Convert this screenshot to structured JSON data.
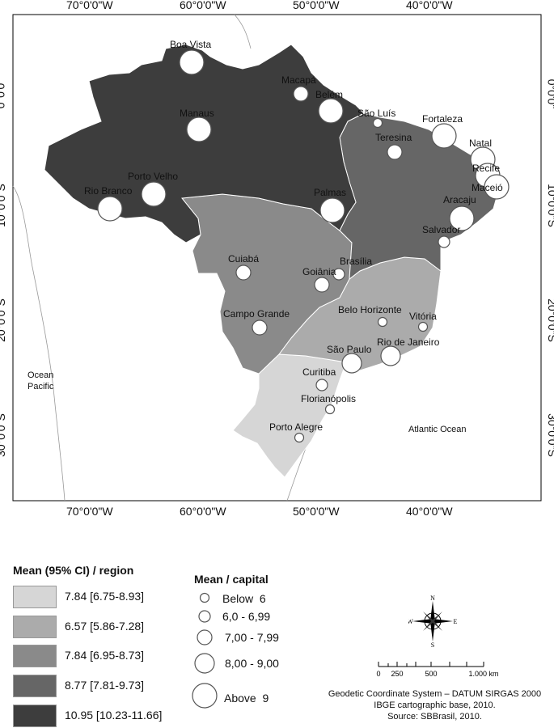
{
  "grid": {
    "top_labels": [
      "70°0'0\"W",
      "60°0'0\"W",
      "50°0'0\"W",
      "40°0'0\"W"
    ],
    "bottom_labels": [
      "70°0'0\"W",
      "60°0'0\"W",
      "50°0'0\"W",
      "40°0'0\"W"
    ],
    "left_labels": [
      "0°0'0\"",
      "10°0'0\"S",
      "20°0'0\"S",
      "30°0'0\"S"
    ],
    "right_labels": [
      "0°0'0\"",
      "10°0'0\"S",
      "20°0'0\"S",
      "30°0'0\"S"
    ]
  },
  "ocean_labels": {
    "pacific_line1": "Ocean",
    "pacific_line2": "Pacific",
    "atlantic": "Atlantic Ocean"
  },
  "colors": {
    "north": "#3d3d3d",
    "northeast": "#666666",
    "centerwest": "#8a8a8a",
    "southeast": "#ababab",
    "south": "#d6d6d6"
  },
  "cities": [
    {
      "name": "Boa Vista",
      "class": 4
    },
    {
      "name": "Macapá",
      "class": 2
    },
    {
      "name": "Belém",
      "class": 4
    },
    {
      "name": "Manaus",
      "class": 4
    },
    {
      "name": "São Luís",
      "class": 0
    },
    {
      "name": "Fortaleza",
      "class": 4
    },
    {
      "name": "Teresina",
      "class": 2
    },
    {
      "name": "Natal",
      "class": 4
    },
    {
      "name": "Recife",
      "class": 4
    },
    {
      "name": "Maceió",
      "class": 4
    },
    {
      "name": "Aracaju",
      "class": 4
    },
    {
      "name": "Porto Velho",
      "class": 4
    },
    {
      "name": "Rio Branco",
      "class": 4
    },
    {
      "name": "Palmas",
      "class": 4
    },
    {
      "name": "Salvador",
      "class": 1
    },
    {
      "name": "Brasília",
      "class": 1
    },
    {
      "name": "Cuiabá",
      "class": 2
    },
    {
      "name": "Goiânia",
      "class": 2
    },
    {
      "name": "Campo Grande",
      "class": 2
    },
    {
      "name": "Belo Horizonte",
      "class": 0
    },
    {
      "name": "Vitória",
      "class": 0
    },
    {
      "name": "Rio de Janeiro",
      "class": 3
    },
    {
      "name": "São Paulo",
      "class": 3
    },
    {
      "name": "Curitiba",
      "class": 1
    },
    {
      "name": "Florianópolis",
      "class": 0
    },
    {
      "name": "Porto Alegre",
      "class": 0
    }
  ],
  "region_legend": {
    "title": "Mean (95% CI) / region",
    "items": [
      {
        "label": "7.84 [6.75-8.93]",
        "color": "#d6d6d6"
      },
      {
        "label": "6.57 [5.86-7.28]",
        "color": "#ababab"
      },
      {
        "label": "7.84 [6.95-8.73]",
        "color": "#8a8a8a"
      },
      {
        "label": "8.77 [7.81-9.73]",
        "color": "#666666"
      },
      {
        "label": "10.95 [10.23-11.66]",
        "color": "#3d3d3d"
      }
    ]
  },
  "capital_legend": {
    "title": "Mean / capital",
    "items": [
      "Below  6",
      "6,0 - 6,99",
      "7,00 - 7,99",
      "8,00 - 9,00",
      "Above  9"
    ]
  },
  "compass": {
    "n": "N",
    "s": "S",
    "e": "E",
    "w": "W"
  },
  "scale": {
    "labels": [
      "0",
      "250",
      "500",
      "1.000 km"
    ]
  },
  "source": {
    "line1": "Geodetic Coordinate System – DATUM SIRGAS 2000",
    "line2": "IBGE cartographic base, 2010.",
    "line3": "Source: SBBrasil, 2010."
  }
}
